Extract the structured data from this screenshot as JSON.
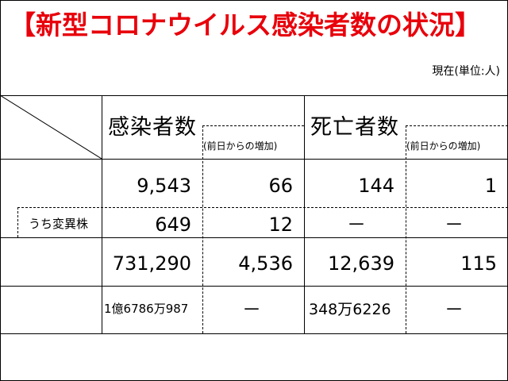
{
  "title": "【新型コロナウイルス感染者数の状況】",
  "unit_note": "現在(単位:人)",
  "headers": {
    "infected": "感染者数",
    "infected_delta": "(前日からの増加)",
    "deaths": "死亡者数",
    "deaths_delta": "(前日からの増加)"
  },
  "rows": [
    {
      "label": "",
      "infected": "9,543",
      "infected_delta": "66",
      "deaths": "144",
      "deaths_delta": "1"
    },
    {
      "label": "うち変異株",
      "infected": "649",
      "infected_delta": "12",
      "deaths": "－",
      "deaths_delta": "－"
    },
    {
      "label": "",
      "infected": "731,290",
      "infected_delta": "4,536",
      "deaths": "12,639",
      "deaths_delta": "115"
    },
    {
      "label": "",
      "infected": "1億6786万987",
      "infected_delta": "－",
      "deaths": "348万6226",
      "deaths_delta": "－"
    }
  ]
}
